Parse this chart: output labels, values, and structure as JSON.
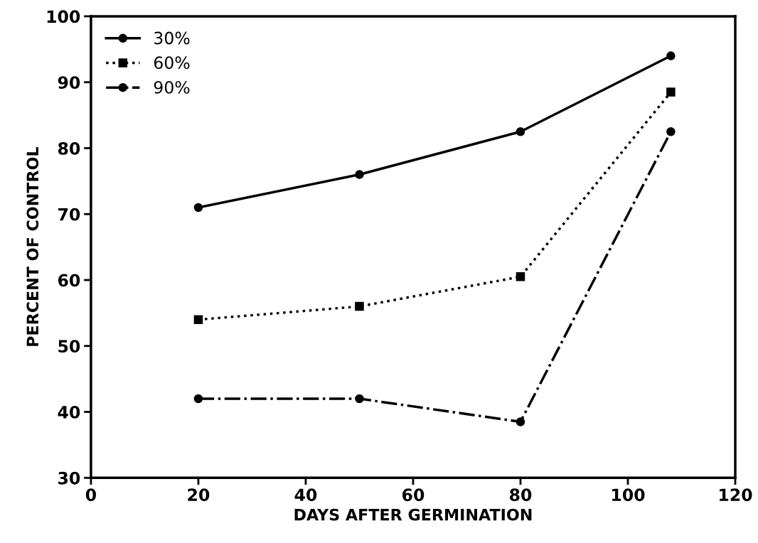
{
  "chart_data": {
    "type": "line",
    "xlabel": "DAYS AFTER GERMINATION",
    "ylabel": "PERCENT OF CONTROL",
    "x": [
      20,
      50,
      80,
      108
    ],
    "series": [
      {
        "name": "30%",
        "color": "#000000",
        "values": [
          71,
          76,
          82.5,
          94
        ],
        "marker": "circle",
        "line_style": "solid"
      },
      {
        "name": "60%",
        "color": "#000000",
        "values": [
          54,
          56,
          60.5,
          88.5
        ],
        "marker": "square",
        "line_style": "dotted"
      },
      {
        "name": "90%",
        "color": "#000000",
        "values": [
          42,
          42,
          38.5,
          82.5
        ],
        "marker": "circle",
        "line_style": "dashdot"
      }
    ],
    "xlim": [
      0,
      120
    ],
    "xticks": [
      0,
      20,
      40,
      60,
      80,
      100,
      120
    ],
    "ylim": [
      30,
      100
    ],
    "yticks": [
      30,
      40,
      50,
      60,
      70,
      80,
      90,
      100
    ],
    "grid": false,
    "legend": "top left"
  }
}
